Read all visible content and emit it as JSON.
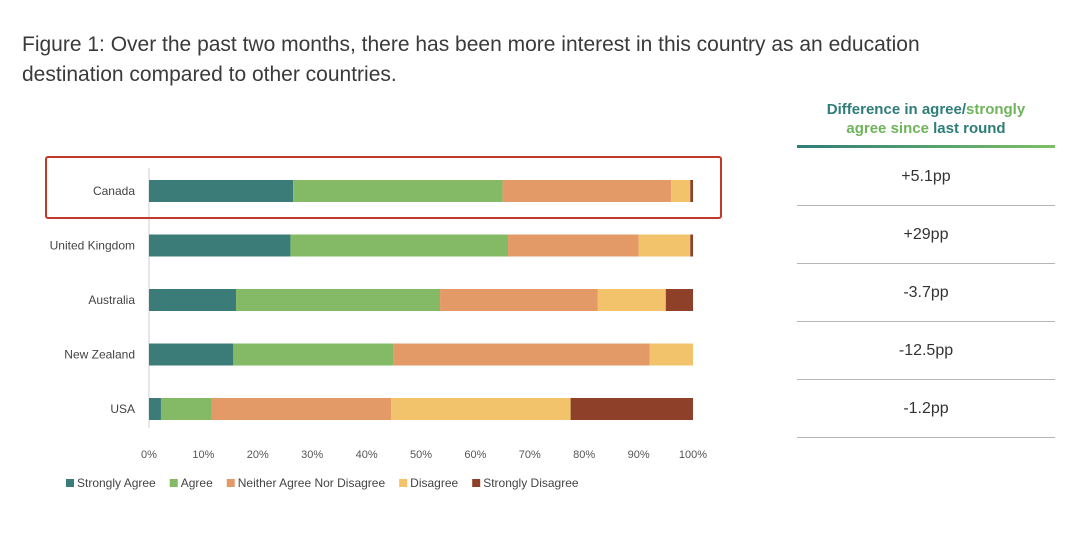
{
  "title": {
    "line1": "Figure 1: Over the past two months, there has been more interest in this country as an education",
    "line2": "destination compared to other countries."
  },
  "diff_panel": {
    "header_line1_a": "Difference in agree/",
    "header_line1_b": "strongly",
    "header_line2_a": "agree since ",
    "header_line2_b": "last round",
    "values": [
      "+5.1pp",
      "+29pp",
      "-3.7pp",
      "-12.5pp",
      "-1.2pp"
    ]
  },
  "highlight": {
    "row": "Canada",
    "color": "#c0392b"
  },
  "chart_data": {
    "type": "bar",
    "orientation": "horizontal",
    "stacked": true,
    "categories": [
      "Canada",
      "United Kingdom",
      "Australia",
      "New Zealand",
      "USA"
    ],
    "series": [
      {
        "name": "Strongly Agree",
        "color": "#3c7c78",
        "values": [
          26.5,
          26,
          16,
          15.5,
          2.2
        ]
      },
      {
        "name": "Agree",
        "color": "#84b966",
        "values": [
          38.5,
          40,
          37.5,
          29.5,
          9.3
        ]
      },
      {
        "name": "Neither Agree Nor Disagree",
        "color": "#e39a67",
        "values": [
          31,
          24,
          29,
          47,
          33
        ]
      },
      {
        "name": "Disagree",
        "color": "#f2c36b",
        "values": [
          3.5,
          9.5,
          12.5,
          8,
          33
        ]
      },
      {
        "name": "Strongly Disagree",
        "color": "#8e4128",
        "values": [
          0.5,
          0.5,
          5,
          0,
          22.5
        ]
      }
    ],
    "xlim": [
      0,
      100
    ],
    "xticks": [
      "0%",
      "10%",
      "20%",
      "30%",
      "40%",
      "50%",
      "60%",
      "70%",
      "80%",
      "90%",
      "100%"
    ],
    "legend_position": "bottom",
    "xlabel": "",
    "ylabel": ""
  }
}
